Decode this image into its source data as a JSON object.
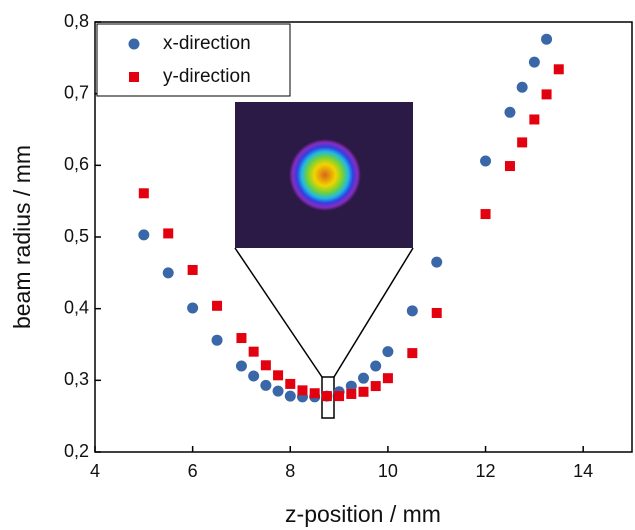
{
  "chart_data": {
    "type": "scatter",
    "x_label": "z-position / mm",
    "y_label": "beam radius / mm",
    "xlim": [
      4,
      15
    ],
    "ylim": [
      0.2,
      0.8
    ],
    "xticks": [
      4,
      6,
      8,
      10,
      12,
      14
    ],
    "yticks": [
      {
        "value": 0.2,
        "label": "0,2"
      },
      {
        "value": 0.3,
        "label": "0,3"
      },
      {
        "value": 0.4,
        "label": "0,4"
      },
      {
        "value": 0.5,
        "label": "0,5"
      },
      {
        "value": 0.6,
        "label": "0,6"
      },
      {
        "value": 0.7,
        "label": "0,7"
      },
      {
        "value": 0.8,
        "label": "0,8"
      }
    ],
    "legend": "upper left",
    "series": [
      {
        "name": "x-direction",
        "color": "#3a67a8",
        "marker": "circle",
        "x": [
          5,
          5.5,
          6,
          6.5,
          7,
          7.25,
          7.5,
          7.75,
          8,
          8.25,
          8.5,
          8.75,
          9,
          9.25,
          9.5,
          9.75,
          10,
          10.5,
          11,
          12,
          12.5,
          12.75,
          13,
          13.25
        ],
        "values": [
          0.503,
          0.45,
          0.401,
          0.356,
          0.32,
          0.306,
          0.293,
          0.285,
          0.278,
          0.277,
          0.277,
          0.278,
          0.284,
          0.292,
          0.303,
          0.32,
          0.34,
          0.397,
          0.465,
          0.606,
          0.674,
          0.709,
          0.744,
          0.776
        ]
      },
      {
        "name": "y-direction",
        "color": "#e3000f",
        "marker": "square",
        "x": [
          5,
          5.5,
          6,
          6.5,
          7,
          7.25,
          7.5,
          7.75,
          8,
          8.25,
          8.5,
          8.75,
          9,
          9.25,
          9.5,
          9.75,
          10,
          10.5,
          11,
          12,
          12.5,
          12.75,
          13,
          13.25,
          13.5
        ],
        "values": [
          0.561,
          0.505,
          0.454,
          0.404,
          0.359,
          0.34,
          0.321,
          0.307,
          0.295,
          0.286,
          0.282,
          0.278,
          0.278,
          0.281,
          0.284,
          0.292,
          0.303,
          0.338,
          0.394,
          0.532,
          0.599,
          0.632,
          0.664,
          0.699,
          0.734
        ]
      }
    ]
  }
}
